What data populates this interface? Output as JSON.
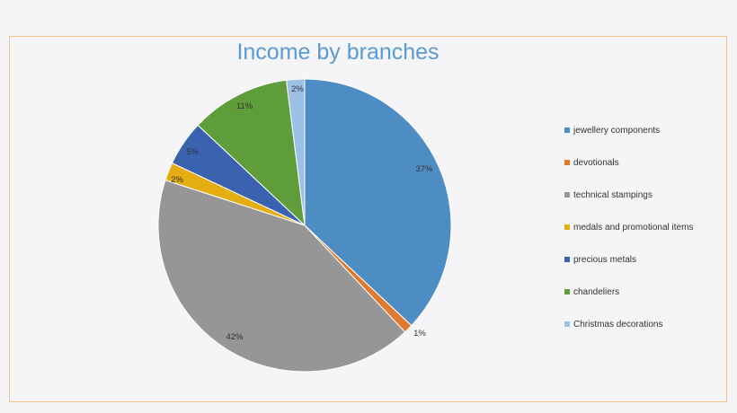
{
  "chart_data": {
    "type": "pie",
    "title": "Income by branches",
    "legend_position": "right",
    "slices": [
      {
        "label": "jewellery components",
        "value": 37,
        "display": "37%",
        "color": "#4e8cc4"
      },
      {
        "label": "devotionals",
        "value": 1,
        "display": "1%",
        "color": "#e07a2e"
      },
      {
        "label": "technical stampings",
        "value": 42,
        "display": "42%",
        "color": "#969696"
      },
      {
        "label": "medals and promotional items",
        "value": 2,
        "display": "2%",
        "color": "#e4ae12"
      },
      {
        "label": "precious metals",
        "value": 5,
        "display": "5%",
        "color": "#3a62ae"
      },
      {
        "label": "chandeliers",
        "value": 11,
        "display": "11%",
        "color": "#5f9c3a"
      },
      {
        "label": "Christmas decorations",
        "value": 2,
        "display": "2%",
        "color": "#9cc0e6"
      }
    ]
  }
}
